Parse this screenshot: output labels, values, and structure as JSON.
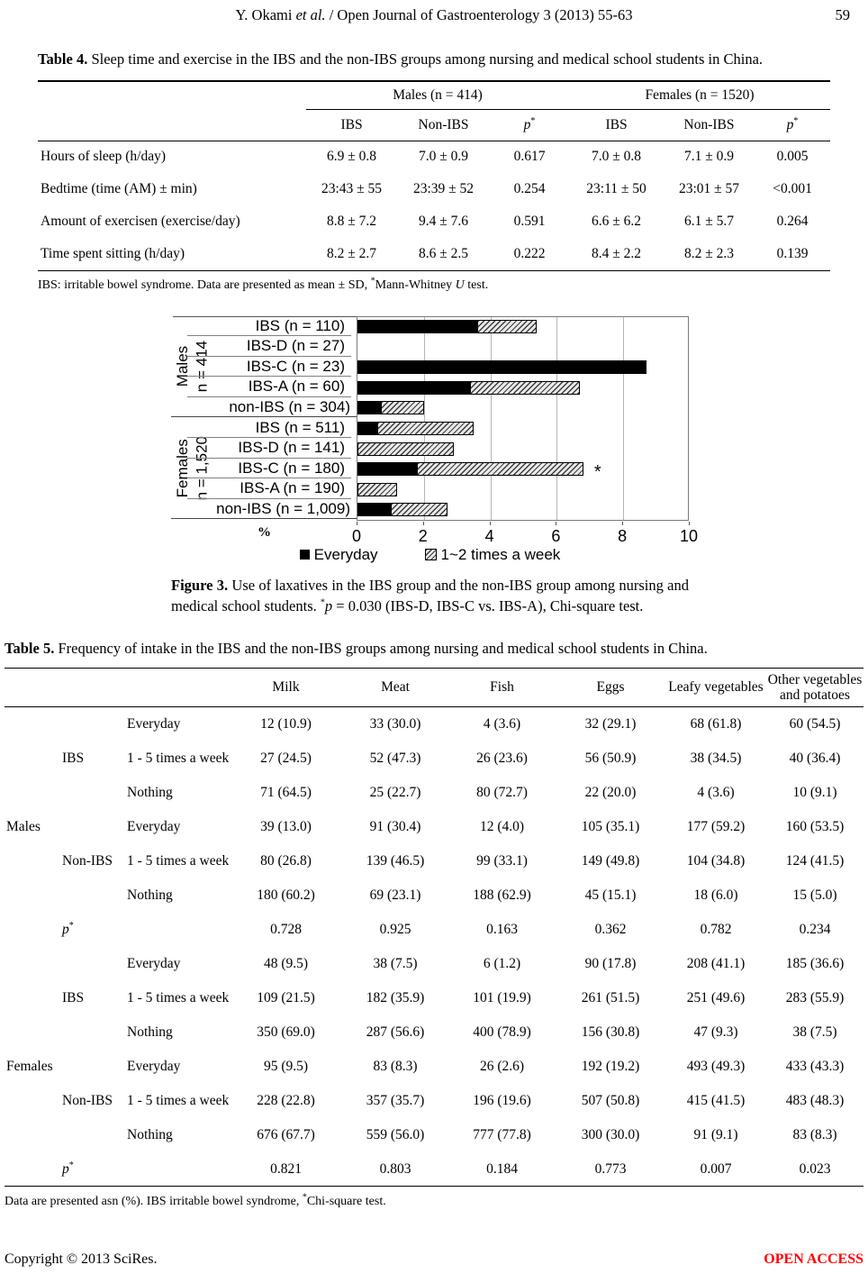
{
  "header": {
    "author": "Y. Okami ",
    "etal": "et al.",
    "rest": " / Open Journal of Gastroenterology 3 (2013) 55-63",
    "page_number": "59"
  },
  "table4": {
    "title_bold": "Table 4.",
    "title_rest": " Sleep time and exercise in the IBS and the non-IBS groups among nursing and medical school students in China.",
    "group_headers": [
      "Males (n = 414)",
      "Females (n = 1520)"
    ],
    "sub_headers": [
      "IBS",
      "Non-IBS",
      "p*",
      "IBS",
      "Non-IBS",
      "p*"
    ],
    "rows": [
      {
        "label": "Hours of sleep (h/day)",
        "values": [
          "6.9 ± 0.8",
          "7.0 ± 0.9",
          "0.617",
          "7.0 ± 0.8",
          "7.1 ± 0.9",
          "0.005"
        ]
      },
      {
        "label": "Bedtime (time (AM) ± min)",
        "values": [
          "23:43 ± 55",
          "23:39 ± 52",
          "0.254",
          "23:11 ± 50",
          "23:01 ± 57",
          "<0.001"
        ]
      },
      {
        "label": "Amount of exercisen (exercise/day)",
        "values": [
          "8.8 ± 7.2",
          "9.4 ± 7.6",
          "0.591",
          "6.6 ± 6.2",
          "6.1 ± 5.7",
          "0.264"
        ]
      },
      {
        "label": "Time spent sitting (h/day)",
        "values": [
          "8.2 ± 2.7",
          "8.6 ± 2.5",
          "0.222",
          "8.4 ± 2.2",
          "8.2 ± 2.3",
          "0.139"
        ]
      }
    ],
    "footnote_pre": "IBS: irritable bowel syndrome. Data are presented as mean ± SD, ",
    "footnote_sup": "*",
    "footnote_mid": "Mann-Whitney ",
    "footnote_italic": "U",
    "footnote_post": " test."
  },
  "chart_data": {
    "type": "bar",
    "orientation": "horizontal",
    "stacked": true,
    "xlabel": "%",
    "xlim": [
      0,
      10
    ],
    "xticks": [
      0,
      2,
      4,
      6,
      8,
      10
    ],
    "grid": true,
    "legend": [
      "Everyday",
      "1~2 times a week"
    ],
    "legend_position": "bottom",
    "series_names": [
      "Everyday",
      "1~2 times a week"
    ],
    "groups": [
      {
        "label_line1": "Males",
        "label_line2": "n = 414",
        "rows": [
          {
            "category": "IBS (n = 110)",
            "everyday": 3.6,
            "weekly": 1.8
          },
          {
            "category": "IBS-D (n = 27)",
            "everyday": 0,
            "weekly": 0
          },
          {
            "category": "IBS-C (n = 23)",
            "everyday": 8.7,
            "weekly": 0
          },
          {
            "category": "IBS-A (n = 60)",
            "everyday": 3.4,
            "weekly": 3.3
          },
          {
            "category": "non-IBS (n = 304)",
            "everyday": 0.7,
            "weekly": 1.3
          }
        ]
      },
      {
        "label_line1": "Females",
        "label_line2": "n = 1,520",
        "rows": [
          {
            "category": "IBS (n = 511)",
            "everyday": 0.6,
            "weekly": 2.9
          },
          {
            "category": "IBS-D (n = 141)",
            "everyday": 0,
            "weekly": 2.9
          },
          {
            "category": "IBS-C (n = 180)",
            "everyday": 1.8,
            "weekly": 5.0,
            "annotation": "*"
          },
          {
            "category": "IBS-A (n = 190)",
            "everyday": 0,
            "weekly": 1.2
          },
          {
            "category": "non-IBS (n = 1,009)",
            "everyday": 1.0,
            "weekly": 1.7
          }
        ]
      }
    ]
  },
  "figure3": {
    "caption_bold": "Figure 3.",
    "caption_text1": " Use of laxatives in the IBS group and the non-IBS group among nursing and medical school students. ",
    "caption_sup": "*",
    "caption_italic": "p",
    "caption_text2": " = 0.030 (IBS-D, IBS-C vs. IBS-A), Chi-square test."
  },
  "table5": {
    "title_bold": "Table 5.",
    "title_rest": " Frequency of intake in the IBS and the non-IBS groups among nursing and medical school students in China.",
    "columns": [
      "Milk",
      "Meat",
      "Fish",
      "Eggs",
      "Leafy vegetables",
      "Other vegetables and potatoes"
    ],
    "rows": [
      {
        "sex": "",
        "group": "",
        "freq": "Everyday",
        "values": [
          "12 (10.9)",
          "33 (30.0)",
          "4 (3.6)",
          "32 (29.1)",
          "68 (61.8)",
          "60 (54.5)"
        ]
      },
      {
        "sex": "",
        "group": "IBS",
        "freq": "1 - 5 times a week",
        "values": [
          "27 (24.5)",
          "52 (47.3)",
          "26 (23.6)",
          "56 (50.9)",
          "38 (34.5)",
          "40 (36.4)"
        ]
      },
      {
        "sex": "",
        "group": "",
        "freq": "Nothing",
        "values": [
          "71 (64.5)",
          "25 (22.7)",
          "80 (72.7)",
          "22 (20.0)",
          "4 (3.6)",
          "10 (9.1)"
        ]
      },
      {
        "sex": "Males",
        "group": "",
        "freq": "Everyday",
        "values": [
          "39 (13.0)",
          "91 (30.4)",
          "12 (4.0)",
          "105 (35.1)",
          "177 (59.2)",
          "160 (53.5)"
        ]
      },
      {
        "sex": "",
        "group": "Non-IBS",
        "freq": "1 - 5 times a week",
        "values": [
          "80 (26.8)",
          "139 (46.5)",
          "99 (33.1)",
          "149 (49.8)",
          "104 (34.8)",
          "124 (41.5)"
        ]
      },
      {
        "sex": "",
        "group": "",
        "freq": "Nothing",
        "values": [
          "180 (60.2)",
          "69 (23.1)",
          "188 (62.9)",
          "45 (15.1)",
          "18 (6.0)",
          "15 (5.0)"
        ]
      },
      {
        "sex": "",
        "group": "p*",
        "freq": "",
        "p_row": true,
        "values": [
          "0.728",
          "0.925",
          "0.163",
          "0.362",
          "0.782",
          "0.234"
        ]
      },
      {
        "sex": "",
        "group": "",
        "freq": "Everyday",
        "values": [
          "48 (9.5)",
          "38 (7.5)",
          "6 (1.2)",
          "90 (17.8)",
          "208 (41.1)",
          "185 (36.6)"
        ]
      },
      {
        "sex": "",
        "group": "IBS",
        "freq": "1 - 5 times a week",
        "values": [
          "109 (21.5)",
          "182 (35.9)",
          "101 (19.9)",
          "261 (51.5)",
          "251 (49.6)",
          "283 (55.9)"
        ]
      },
      {
        "sex": "",
        "group": "",
        "freq": "Nothing",
        "values": [
          "350 (69.0)",
          "287 (56.6)",
          "400 (78.9)",
          "156 (30.8)",
          "47 (9.3)",
          "38 (7.5)"
        ]
      },
      {
        "sex": "Females",
        "group": "",
        "freq": "Everyday",
        "values": [
          "95 (9.5)",
          "83 (8.3)",
          "26 (2.6)",
          "192 (19.2)",
          "493 (49.3)",
          "433 (43.3)"
        ]
      },
      {
        "sex": "",
        "group": "Non-IBS",
        "freq": "1 - 5 times a week",
        "values": [
          "228 (22.8)",
          "357 (35.7)",
          "196 (19.6)",
          "507 (50.8)",
          "415 (41.5)",
          "483 (48.3)"
        ]
      },
      {
        "sex": "",
        "group": "",
        "freq": "Nothing",
        "values": [
          "676 (67.7)",
          "559 (56.0)",
          "777 (77.8)",
          "300 (30.0)",
          "91 (9.1)",
          "83 (8.3)"
        ]
      },
      {
        "sex": "",
        "group": "p*",
        "freq": "",
        "p_row": true,
        "values": [
          "0.821",
          "0.803",
          "0.184",
          "0.773",
          "0.007",
          "0.023"
        ]
      }
    ],
    "footnote_pre": "Data are presented asn (%). IBS irritable bowel syndrome, ",
    "footnote_sup": "*",
    "footnote_post": "Chi-square test."
  },
  "footer": {
    "copyright": "Copyright © 2013 SciRes.",
    "open_access": "OPEN ACCESS",
    "open_access_color": "#ff0000"
  }
}
